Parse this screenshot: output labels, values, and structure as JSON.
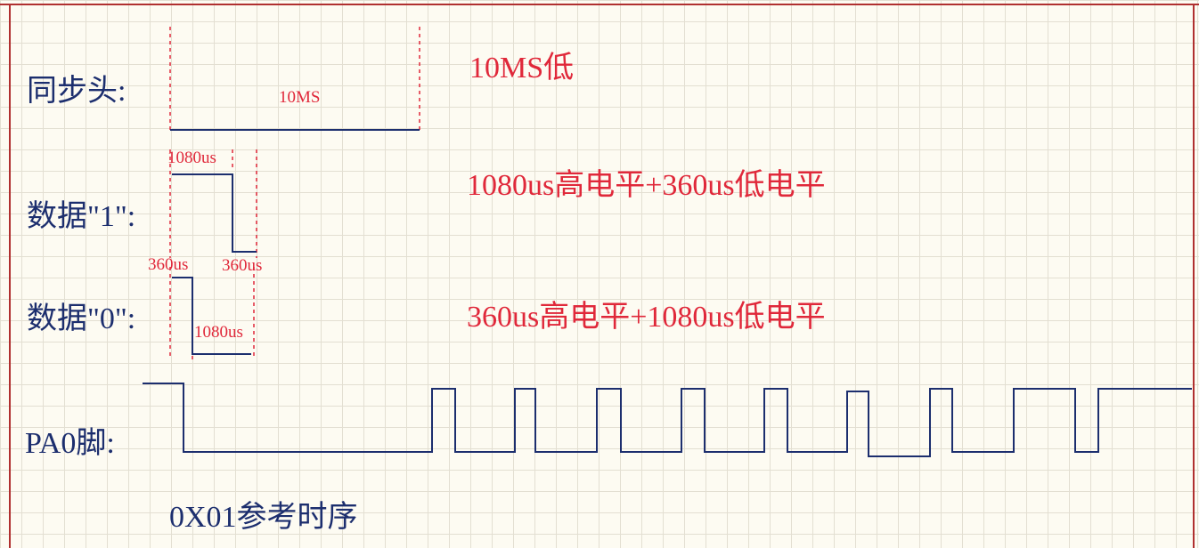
{
  "colors": {
    "signal": "#1c2e6e",
    "annotation": "#e0283a",
    "frame": "#b03030",
    "grid": "#e3dfd2"
  },
  "labels": {
    "sync": "同步头:",
    "data1": "数据\"1\":",
    "data0": "数据\"0\":",
    "pin": "PA0脚:",
    "caption": "0X01参考时序"
  },
  "annotations": {
    "sync_width": "10MS",
    "sync_desc": "10MS低",
    "data1_high": "1080us",
    "data1_low": "360us",
    "data1_desc": "1080us高电平+360us低电平",
    "data0_high": "360us",
    "data0_low": "1080us",
    "data0_desc": "360us高电平+1080us低电平"
  }
}
